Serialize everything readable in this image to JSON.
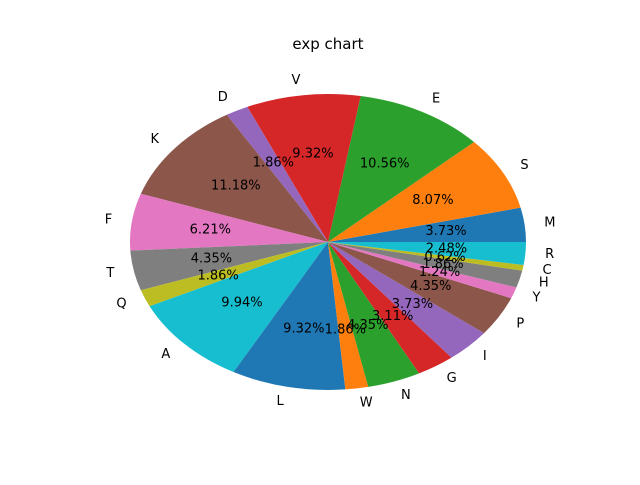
{
  "chart_data": {
    "type": "pie",
    "title": "exp chart",
    "start_angle_deg": 0,
    "direction": "counterclockwise",
    "slices": [
      {
        "label": "M",
        "pct": "3.73%",
        "value": 3.73,
        "color": "#1f77b4"
      },
      {
        "label": "S",
        "pct": "8.07%",
        "value": 8.07,
        "color": "#ff7f0e"
      },
      {
        "label": "E",
        "pct": "10.56%",
        "value": 10.56,
        "color": "#2ca02c"
      },
      {
        "label": "V",
        "pct": "9.32%",
        "value": 9.32,
        "color": "#d62728"
      },
      {
        "label": "D",
        "pct": "1.86%",
        "value": 1.86,
        "color": "#9467bd"
      },
      {
        "label": "K",
        "pct": "11.18%",
        "value": 11.18,
        "color": "#8c564b"
      },
      {
        "label": "F",
        "pct": "6.21%",
        "value": 6.21,
        "color": "#e377c2"
      },
      {
        "label": "T",
        "pct": "4.35%",
        "value": 4.35,
        "color": "#7f7f7f"
      },
      {
        "label": "Q",
        "pct": "1.86%",
        "value": 1.86,
        "color": "#bcbd22"
      },
      {
        "label": "A",
        "pct": "9.94%",
        "value": 9.94,
        "color": "#17becf"
      },
      {
        "label": "L",
        "pct": "9.32%",
        "value": 9.32,
        "color": "#1f77b4"
      },
      {
        "label": "W",
        "pct": "1.86%",
        "value": 1.86,
        "color": "#ff7f0e"
      },
      {
        "label": "N",
        "pct": "4.35%",
        "value": 4.35,
        "color": "#2ca02c"
      },
      {
        "label": "G",
        "pct": "3.11%",
        "value": 3.11,
        "color": "#d62728"
      },
      {
        "label": "I",
        "pct": "3.73%",
        "value": 3.73,
        "color": "#9467bd"
      },
      {
        "label": "P",
        "pct": "4.35%",
        "value": 4.35,
        "color": "#8c564b"
      },
      {
        "label": "Y",
        "pct": "1.24%",
        "value": 1.24,
        "color": "#e377c2"
      },
      {
        "label": "H",
        "pct": "1.86%",
        "value": 1.86,
        "color": "#7f7f7f"
      },
      {
        "label": "C",
        "pct": "0.62%",
        "value": 0.62,
        "color": "#bcbd22"
      },
      {
        "label": "R",
        "pct": "2.48%",
        "value": 2.48,
        "color": "#17becf"
      }
    ]
  }
}
